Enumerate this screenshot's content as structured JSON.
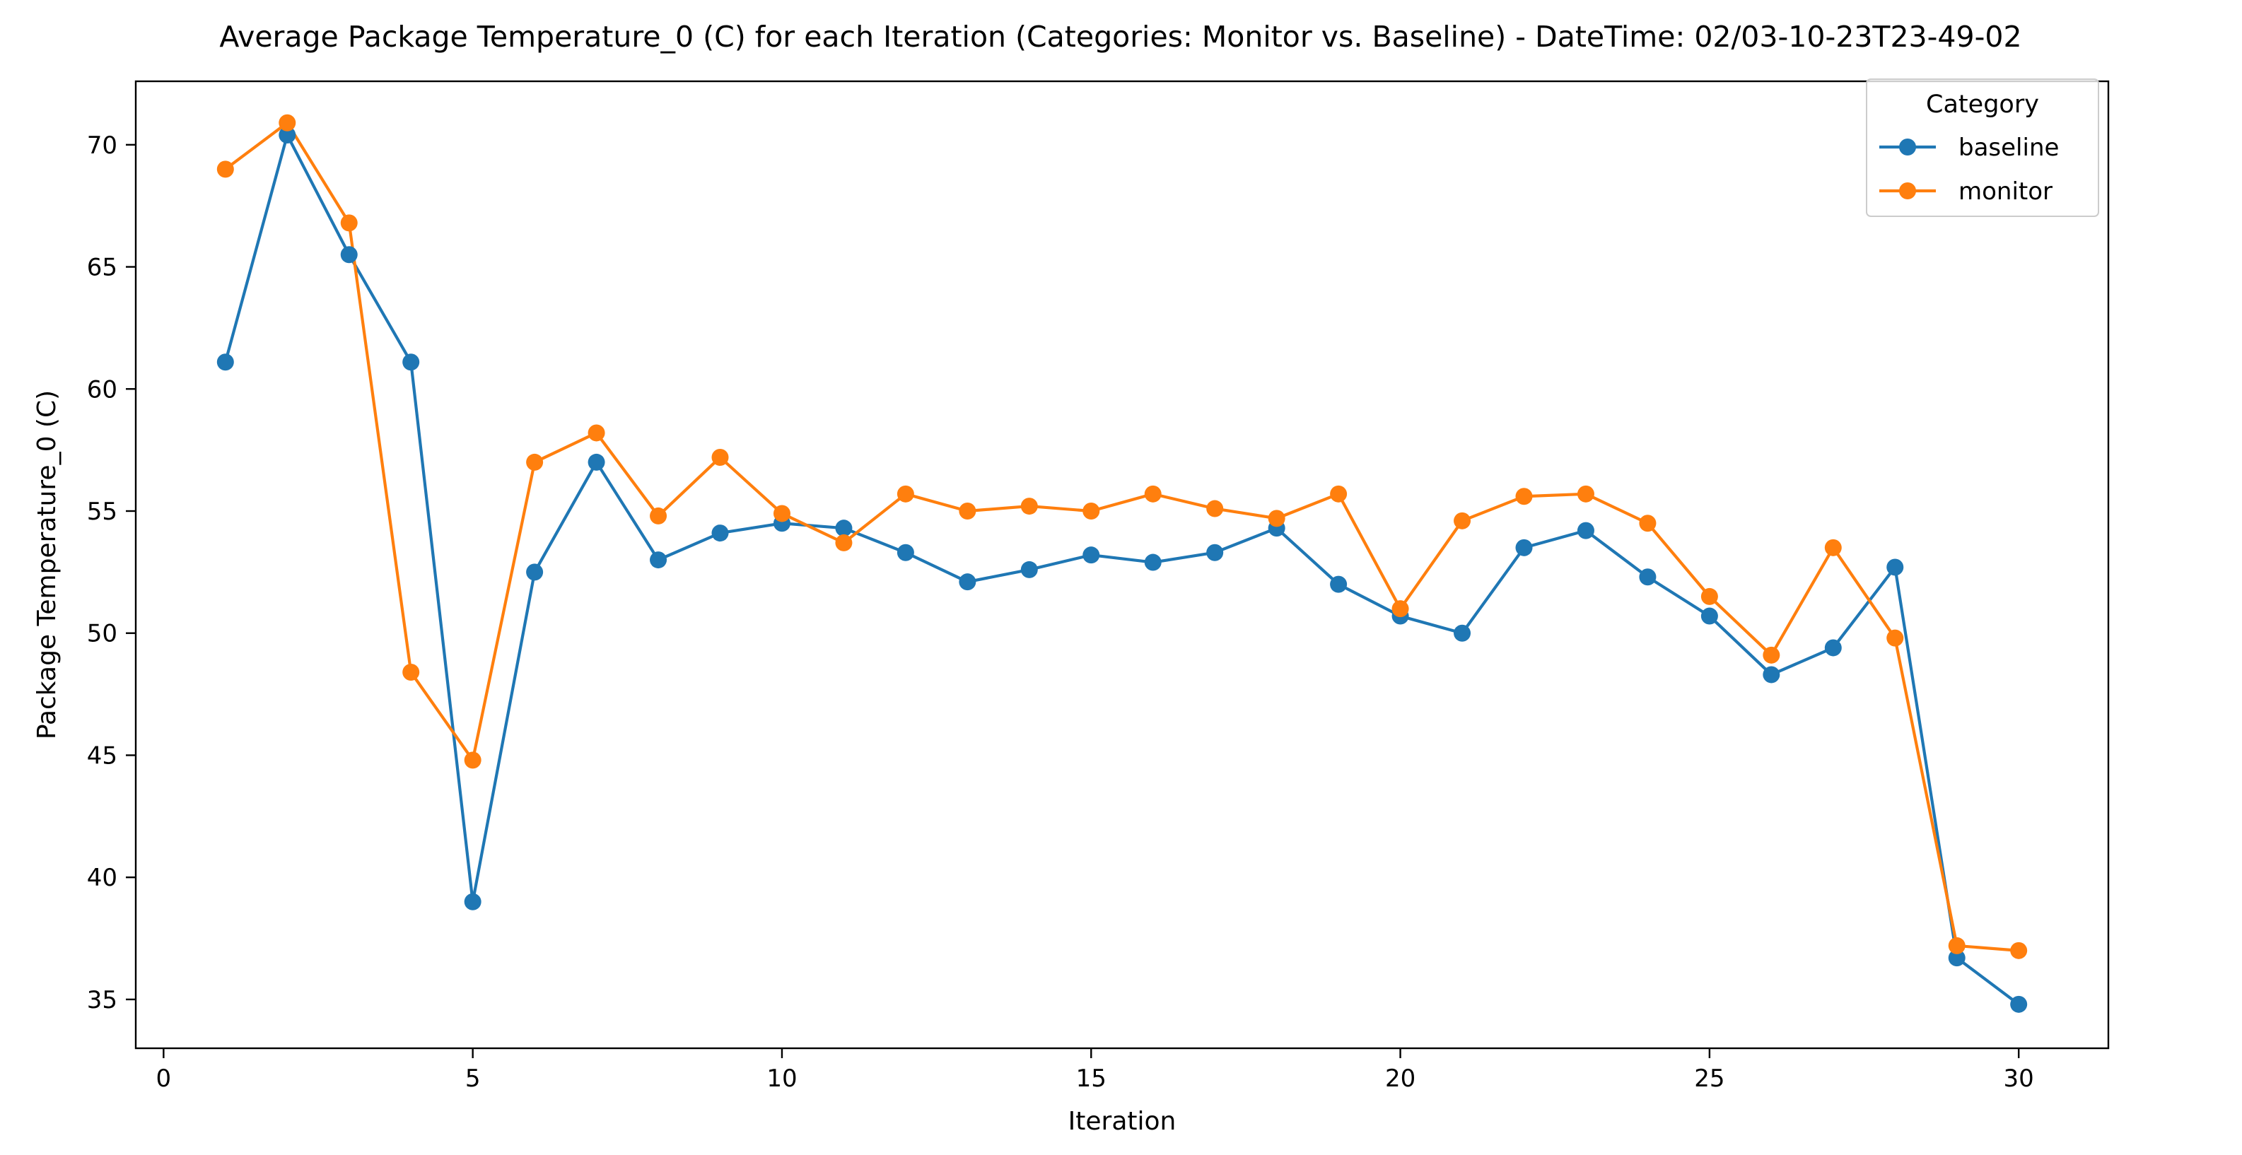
{
  "chart_data": {
    "type": "line",
    "title": "Average Package Temperature_0 (C) for each Iteration (Categories: Monitor vs. Baseline) - DateTime: 02/03-10-23T23-49-02",
    "xlabel": "Iteration",
    "ylabel": "Package Temperature_0 (C)",
    "xlim": [
      -0.45,
      31.45
    ],
    "ylim": [
      33.0,
      72.6
    ],
    "xticks": [
      0,
      5,
      10,
      15,
      20,
      25,
      30
    ],
    "yticks": [
      35,
      40,
      45,
      50,
      55,
      60,
      65,
      70
    ],
    "grid": false,
    "legend": {
      "title": "Category",
      "position": "top-right"
    },
    "x": [
      1,
      2,
      3,
      4,
      5,
      6,
      7,
      8,
      9,
      10,
      11,
      12,
      13,
      14,
      15,
      16,
      17,
      18,
      19,
      20,
      21,
      22,
      23,
      24,
      25,
      26,
      27,
      28,
      29,
      30
    ],
    "series": [
      {
        "name": "baseline",
        "color": "#1f77b4",
        "marker": "circle",
        "values": [
          61.1,
          70.4,
          65.5,
          61.1,
          39.0,
          52.5,
          57.0,
          53.0,
          54.1,
          54.5,
          54.3,
          53.3,
          52.1,
          52.6,
          53.2,
          52.9,
          53.3,
          54.3,
          52.0,
          50.7,
          50.0,
          53.5,
          54.2,
          52.3,
          50.7,
          48.3,
          49.4,
          52.7,
          36.7,
          34.8
        ]
      },
      {
        "name": "monitor",
        "color": "#ff7f0e",
        "marker": "circle",
        "values": [
          69.0,
          70.9,
          66.8,
          48.4,
          44.8,
          57.0,
          58.2,
          54.8,
          57.2,
          54.9,
          53.7,
          55.7,
          55.0,
          55.2,
          55.0,
          55.7,
          55.1,
          54.7,
          55.7,
          51.0,
          54.6,
          55.6,
          55.7,
          54.5,
          51.5,
          49.1,
          53.5,
          49.8,
          37.2,
          37.0
        ]
      }
    ]
  }
}
